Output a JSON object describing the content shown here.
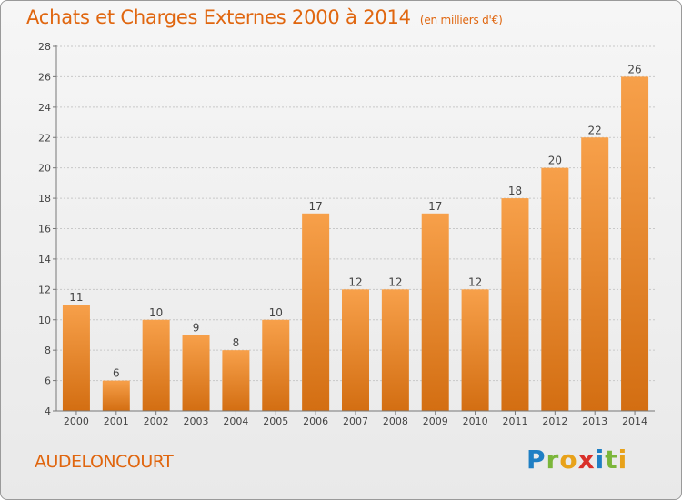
{
  "header": {
    "title": "Achats et Charges Externes 2000 à 2014",
    "unit": "(en milliers d'€)"
  },
  "footer": {
    "commune": "AUDELONCOURT",
    "logo_text": "Proxiti"
  },
  "colors": {
    "accent": "#e0660f",
    "bar_light": "#f7a04a",
    "bar_dark": "#d36e12",
    "grid": "#c8c8c8"
  },
  "chart_data": {
    "type": "bar",
    "categories": [
      "2000",
      "2001",
      "2002",
      "2003",
      "2004",
      "2005",
      "2006",
      "2007",
      "2008",
      "2009",
      "2010",
      "2011",
      "2012",
      "2013",
      "2014"
    ],
    "values": [
      11,
      6,
      10,
      9,
      8,
      10,
      17,
      12,
      12,
      17,
      12,
      18,
      20,
      22,
      26
    ],
    "ylim": [
      4,
      28
    ],
    "yticks": [
      4,
      6,
      8,
      10,
      12,
      14,
      16,
      18,
      20,
      22,
      24,
      26,
      28
    ],
    "title": "Achats et Charges Externes 2000 à 2014",
    "xlabel": "",
    "ylabel": "",
    "grid": true,
    "data_labels": true
  }
}
